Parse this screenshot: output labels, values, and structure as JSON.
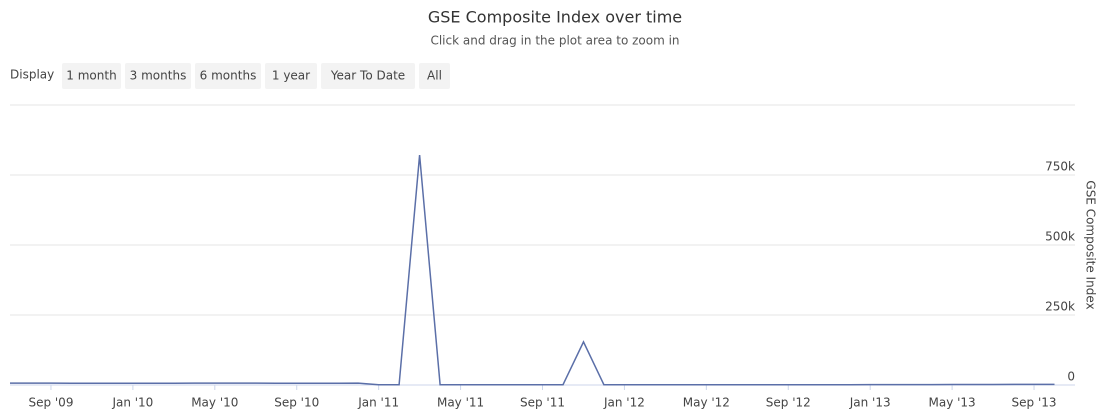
{
  "chart_data": {
    "type": "line",
    "title": "GSE Composite Index over time",
    "subtitle": "Click and drag in the plot area to zoom in",
    "range_selector": {
      "label": "Display",
      "buttons": [
        "1 month",
        "3 months",
        "6 months",
        "1 year",
        "Year To Date",
        "All"
      ]
    },
    "y_axis_label": "GSE Composite Index",
    "x": [
      "2009-07",
      "2009-08",
      "2009-09",
      "2009-10",
      "2009-11",
      "2009-12",
      "2010-01",
      "2010-02",
      "2010-03",
      "2010-04",
      "2010-05",
      "2010-06",
      "2010-07",
      "2010-08",
      "2010-09",
      "2010-10",
      "2010-11",
      "2010-12",
      "2011-01",
      "2011-02",
      "2011-03",
      "2011-04",
      "2011-05",
      "2011-06",
      "2011-07",
      "2011-08",
      "2011-09",
      "2011-10",
      "2011-11",
      "2011-12",
      "2012-01",
      "2012-02",
      "2012-03",
      "2012-04",
      "2012-05",
      "2012-06",
      "2012-07",
      "2012-08",
      "2012-09",
      "2012-10",
      "2012-11",
      "2012-12",
      "2013-01",
      "2013-02",
      "2013-03",
      "2013-04",
      "2013-05",
      "2013-06",
      "2013-07",
      "2013-08",
      "2013-09",
      "2013-10"
    ],
    "series": [
      {
        "name": "GSE Composite Index",
        "color": "#5b6fa8",
        "values": [
          6900,
          6800,
          6700,
          6600,
          6500,
          6400,
          6300,
          6300,
          6400,
          6700,
          6900,
          6800,
          6700,
          6600,
          6500,
          6500,
          6600,
          6900,
          1000,
          1000,
          821000,
          1000,
          1000,
          1000,
          1100,
          1100,
          1100,
          1100,
          154000,
          970,
          960,
          1000,
          1050,
          1100,
          1100,
          1150,
          1150,
          1150,
          1170,
          1180,
          1190,
          1200,
          1250,
          1350,
          1500,
          1600,
          1700,
          1800,
          1900,
          2000,
          2050,
          2100
        ]
      }
    ],
    "xlim": [
      "2009-07",
      "2013-11"
    ],
    "xticks": [
      {
        "value": "2009-09",
        "label": "Sep '09"
      },
      {
        "value": "2010-01",
        "label": "Jan '10"
      },
      {
        "value": "2010-05",
        "label": "May '10"
      },
      {
        "value": "2010-09",
        "label": "Sep '10"
      },
      {
        "value": "2011-01",
        "label": "Jan '11"
      },
      {
        "value": "2011-05",
        "label": "May '11"
      },
      {
        "value": "2011-09",
        "label": "Sep '11"
      },
      {
        "value": "2012-01",
        "label": "Jan '12"
      },
      {
        "value": "2012-05",
        "label": "May '12"
      },
      {
        "value": "2012-09",
        "label": "Sep '12"
      },
      {
        "value": "2013-01",
        "label": "Jan '13"
      },
      {
        "value": "2013-05",
        "label": "May '13"
      },
      {
        "value": "2013-09",
        "label": "Sep '13"
      }
    ],
    "ylim": [
      0,
      1000000
    ],
    "yticks": [
      0,
      {
        "value": 250000,
        "label": "250k"
      },
      {
        "value": 500000,
        "label": "500k"
      },
      {
        "value": 750000,
        "label": "750k"
      }
    ],
    "grid": true
  }
}
